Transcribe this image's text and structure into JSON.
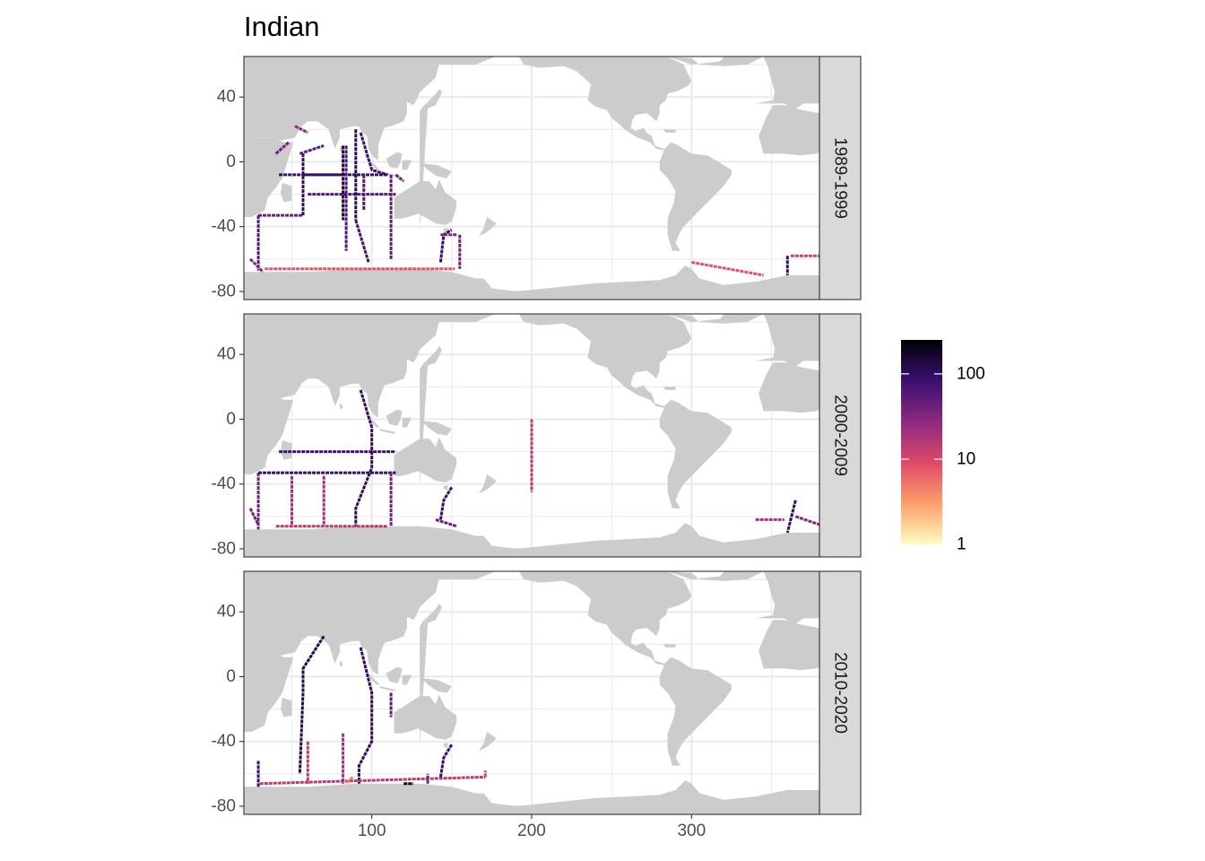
{
  "chart_data": {
    "type": "heatmap",
    "title": "Indian",
    "xlabel": "",
    "ylabel": "",
    "xlim": [
      20,
      380
    ],
    "ylim": [
      -85,
      65
    ],
    "x_ticks": [
      100,
      200,
      300
    ],
    "y_ticks": [
      40,
      0,
      -40,
      -80
    ],
    "grid": true,
    "color_scale": {
      "type": "log",
      "range": [
        1,
        250
      ],
      "ticks": [
        1,
        10,
        100
      ],
      "colors": [
        "#fcfdbf",
        "#fe9f6d",
        "#de4968",
        "#8c2981",
        "#3b0f70",
        "#000004"
      ]
    },
    "legend_position": "right",
    "land_color": "#cccccc",
    "panels": [
      {
        "label": "1989-1999",
        "tracks": [
          {
            "points": [
              [
                29,
                -33
              ],
              [
                29,
                -67
              ]
            ],
            "value": 60
          },
          {
            "points": [
              [
                29,
                -33
              ],
              [
                57,
                -33
              ]
            ],
            "value": 45
          },
          {
            "points": [
              [
                24,
                -60
              ],
              [
                32,
                -68
              ]
            ],
            "value": 30
          },
          {
            "points": [
              [
                33,
                -66
              ],
              [
                152,
                -66
              ]
            ],
            "value": 8
          },
          {
            "points": [
              [
                42,
                -8
              ],
              [
                80,
                -8
              ]
            ],
            "value": 90
          },
          {
            "points": [
              [
                40,
                5
              ],
              [
                48,
                12
              ]
            ],
            "value": 40
          },
          {
            "points": [
              [
                57,
                -33
              ],
              [
                57,
                5
              ]
            ],
            "value": 100
          },
          {
            "points": [
              [
                55,
                5
              ],
              [
                70,
                10
              ]
            ],
            "value": 50
          },
          {
            "points": [
              [
                57,
                -8
              ],
              [
                110,
                -8
              ]
            ],
            "value": 90
          },
          {
            "points": [
              [
                60,
                -20
              ],
              [
                115,
                -20
              ]
            ],
            "value": 60
          },
          {
            "points": [
              [
                82,
                10
              ],
              [
                82,
                -36
              ]
            ],
            "value": 140
          },
          {
            "points": [
              [
                84,
                10
              ],
              [
                84,
                -55
              ]
            ],
            "value": 60
          },
          {
            "points": [
              [
                90,
                20
              ],
              [
                90,
                -36
              ]
            ],
            "value": 110
          },
          {
            "points": [
              [
                90,
                -36
              ],
              [
                98,
                -62
              ]
            ],
            "value": 70
          },
          {
            "points": [
              [
                93,
                18
              ],
              [
                100,
                -5
              ],
              [
                110,
                -8
              ]
            ],
            "value": 80
          },
          {
            "points": [
              [
                95,
                -8
              ],
              [
                95,
                -30
              ]
            ],
            "value": 60
          },
          {
            "points": [
              [
                112,
                -8
              ],
              [
                112,
                -60
              ]
            ],
            "value": 50
          },
          {
            "points": [
              [
                115,
                -8
              ],
              [
                120,
                -12
              ]
            ],
            "value": 40
          },
          {
            "points": [
              [
                52,
                22
              ],
              [
                60,
                18
              ]
            ],
            "value": 30
          },
          {
            "points": [
              [
                143,
                -62
              ],
              [
                145,
                -45
              ],
              [
                150,
                -42
              ]
            ],
            "value": 90
          },
          {
            "points": [
              [
                155,
                -45
              ],
              [
                155,
                -66
              ]
            ],
            "value": 40
          },
          {
            "points": [
              [
                153,
                -45
              ],
              [
                143,
                -45
              ]
            ],
            "value": 30
          },
          {
            "points": [
              [
                300,
                -62
              ],
              [
                345,
                -70
              ]
            ],
            "value": 8
          },
          {
            "points": [
              [
                360,
                -58
              ],
              [
                360,
                -70
              ]
            ],
            "value": 100
          },
          {
            "points": [
              [
                362,
                -58
              ],
              [
                380,
                -58
              ]
            ],
            "value": 12
          }
        ]
      },
      {
        "label": "2000-2009",
        "tracks": [
          {
            "points": [
              [
                29,
                -33
              ],
              [
                29,
                -68
              ]
            ],
            "value": 40
          },
          {
            "points": [
              [
                29,
                -33
              ],
              [
                115,
                -33
              ]
            ],
            "value": 90
          },
          {
            "points": [
              [
                42,
                -20
              ],
              [
                115,
                -20
              ]
            ],
            "value": 80
          },
          {
            "points": [
              [
                93,
                18
              ],
              [
                100,
                -5
              ],
              [
                100,
                -30
              ],
              [
                90,
                -55
              ],
              [
                90,
                -66
              ]
            ],
            "value": 100
          },
          {
            "points": [
              [
                112,
                -33
              ],
              [
                112,
                -66
              ]
            ],
            "value": 40
          },
          {
            "points": [
              [
                50,
                -35
              ],
              [
                50,
                -66
              ]
            ],
            "value": 20
          },
          {
            "points": [
              [
                70,
                -35
              ],
              [
                70,
                -66
              ]
            ],
            "value": 20
          },
          {
            "points": [
              [
                40,
                -66
              ],
              [
                110,
                -66
              ]
            ],
            "value": 15
          },
          {
            "points": [
              [
                143,
                -62
              ],
              [
                145,
                -50
              ],
              [
                150,
                -42
              ]
            ],
            "value": 90
          },
          {
            "points": [
              [
                140,
                -62
              ],
              [
                153,
                -66
              ]
            ],
            "value": 40
          },
          {
            "points": [
              [
                200,
                0
              ],
              [
                200,
                -45
              ]
            ],
            "value": 15
          },
          {
            "points": [
              [
                365,
                -50
              ],
              [
                360,
                -70
              ]
            ],
            "value": 100
          },
          {
            "points": [
              [
                365,
                -60
              ],
              [
                380,
                -65
              ]
            ],
            "value": 30
          },
          {
            "points": [
              [
                340,
                -62
              ],
              [
                358,
                -62
              ]
            ],
            "value": 20
          },
          {
            "points": [
              [
                24,
                -55
              ],
              [
                29,
                -65
              ]
            ],
            "value": 40
          }
        ]
      },
      {
        "label": "2010-2020",
        "tracks": [
          {
            "points": [
              [
                70,
                25
              ],
              [
                57,
                5
              ],
              [
                57,
                -10
              ],
              [
                55,
                -60
              ]
            ],
            "value": 120
          },
          {
            "points": [
              [
                93,
                18
              ],
              [
                100,
                -10
              ],
              [
                100,
                -40
              ],
              [
                92,
                -55
              ],
              [
                92,
                -66
              ]
            ],
            "value": 100
          },
          {
            "points": [
              [
                30,
                -66
              ],
              [
                171,
                -62
              ]
            ],
            "value": 15
          },
          {
            "points": [
              [
                82,
                -35
              ],
              [
                82,
                -66
              ]
            ],
            "value": 20
          },
          {
            "points": [
              [
                60,
                -40
              ],
              [
                60,
                -66
              ]
            ],
            "value": 15
          },
          {
            "points": [
              [
                143,
                -62
              ],
              [
                145,
                -50
              ],
              [
                150,
                -42
              ]
            ],
            "value": 90
          },
          {
            "points": [
              [
                135,
                -66
              ],
              [
                135,
                -60
              ]
            ],
            "value": 40
          },
          {
            "points": [
              [
                112,
                -10
              ],
              [
                112,
                -25
              ]
            ],
            "value": 50
          },
          {
            "points": [
              [
                29,
                -52
              ],
              [
                29,
                -68
              ]
            ],
            "value": 80
          },
          {
            "points": [
              [
                88,
                -62
              ],
              [
                84,
                -66
              ]
            ],
            "value": 5
          },
          {
            "points": [
              [
                120,
                -66
              ],
              [
                126,
                -66
              ]
            ],
            "value": 250
          },
          {
            "points": [
              [
                171,
                -62
              ],
              [
                171,
                -58
              ]
            ],
            "value": 10
          }
        ]
      }
    ]
  }
}
